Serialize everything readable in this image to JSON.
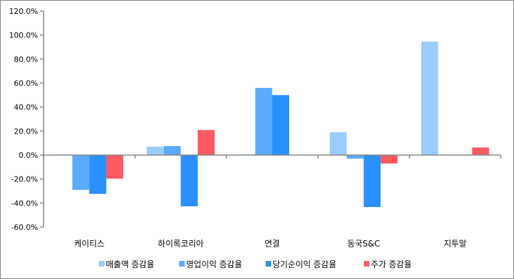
{
  "chart_data": {
    "type": "bar",
    "title": "",
    "xlabel": "",
    "ylabel": "",
    "categories": [
      "케이티스",
      "하이록코리아",
      "연결",
      "동국S&C",
      "지투알"
    ],
    "series": [
      {
        "name": "매출액 증감율",
        "color": "#99CCFF",
        "values": [
          0.5,
          7.0,
          0.5,
          19.0,
          94.5
        ]
      },
      {
        "name": "영업이익 증감율",
        "color": "#5AABFF",
        "values": [
          -29.0,
          7.5,
          56.0,
          -3.0,
          0
        ]
      },
      {
        "name": "당기순이익 증감율",
        "color": "#2990FF",
        "values": [
          -32.3,
          -42.7,
          50.0,
          -43.3,
          0
        ]
      },
      {
        "name": "주가 증감율",
        "color": "#FF5A63",
        "values": [
          -19.6,
          20.9,
          0,
          -7.0,
          6.3
        ]
      }
    ],
    "ylim": [
      -60,
      120
    ],
    "yticks": [
      120,
      100,
      80,
      60,
      40,
      20,
      0,
      -20,
      -40,
      -60
    ],
    "ytick_labels": [
      "120.0%",
      "100.0%",
      "80.0%",
      "60.0%",
      "40.0%",
      "20.0%",
      "0.0%",
      "-20.0%",
      "-40.0%",
      "-60.0%"
    ],
    "grid": false,
    "legend_position": "bottom"
  }
}
